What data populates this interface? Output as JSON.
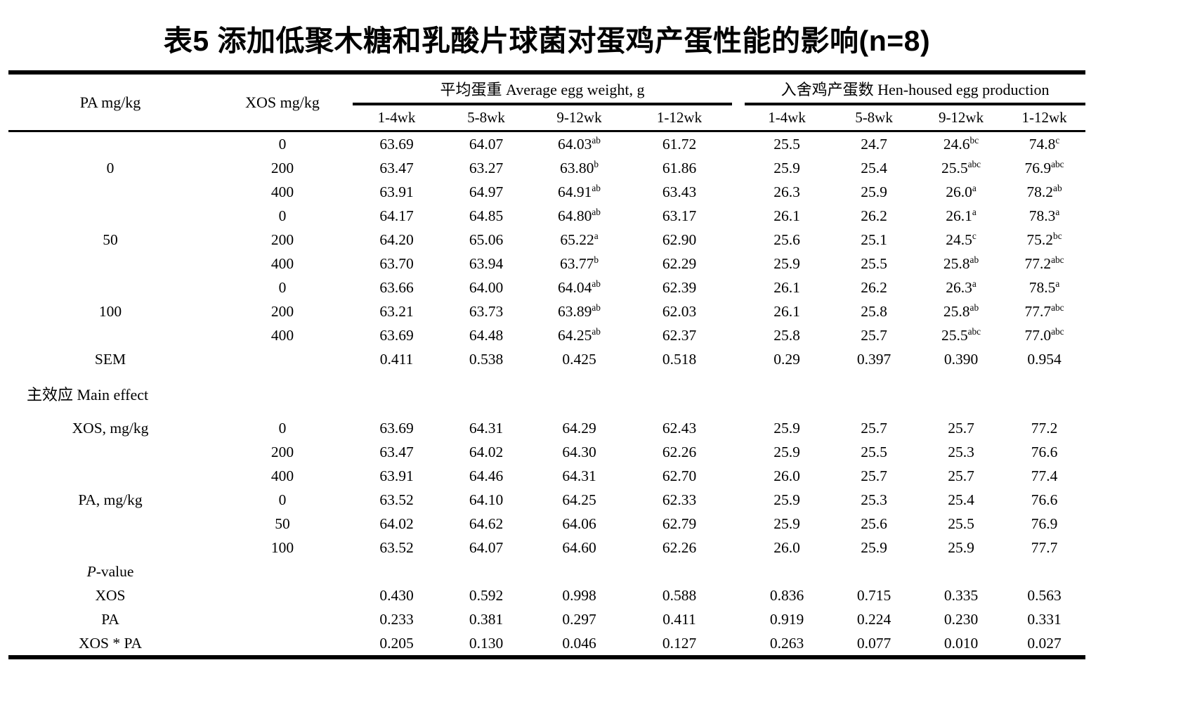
{
  "title": "表5 添加低聚木糖和乳酸片球菌对蛋鸡产蛋性能的影响(n=8)",
  "table": {
    "col_headers": {
      "pa": "PA mg/kg",
      "xos": "XOS mg/kg",
      "group1": "平均蛋重 Average egg weight, g",
      "group2": "入舍鸡产蛋数 Hen-housed egg production",
      "subcols": [
        "1-4wk",
        "5-8wk",
        "9-12wk",
        "1-12wk",
        "1-4wk",
        "5-8wk",
        "9-12wk",
        "1-12wk"
      ]
    },
    "rows": [
      {
        "c0": "",
        "c1": "0",
        "cells": [
          "63.69",
          "64.07",
          "64.03^ab",
          "61.72",
          "25.5",
          "24.7",
          "24.6^bc",
          "74.8^c"
        ]
      },
      {
        "c0": "0",
        "c1": "200",
        "cells": [
          "63.47",
          "63.27",
          "63.80^b",
          "61.86",
          "25.9",
          "25.4",
          "25.5^abc",
          "76.9^abc"
        ]
      },
      {
        "c0": "",
        "c1": "400",
        "cells": [
          "63.91",
          "64.97",
          "64.91^ab",
          "63.43",
          "26.3",
          "25.9",
          "26.0^a",
          "78.2^ab"
        ]
      },
      {
        "c0": "",
        "c1": "0",
        "cells": [
          "64.17",
          "64.85",
          "64.80^ab",
          "63.17",
          "26.1",
          "26.2",
          "26.1^a",
          "78.3^a"
        ]
      },
      {
        "c0": "50",
        "c1": "200",
        "cells": [
          "64.20",
          "65.06",
          "65.22^a",
          "62.90",
          "25.6",
          "25.1",
          "24.5^c",
          "75.2^bc"
        ]
      },
      {
        "c0": "",
        "c1": "400",
        "cells": [
          "63.70",
          "63.94",
          "63.77^b",
          "62.29",
          "25.9",
          "25.5",
          "25.8^ab",
          "77.2^abc"
        ]
      },
      {
        "c0": "",
        "c1": "0",
        "cells": [
          "63.66",
          "64.00",
          "64.04^ab",
          "62.39",
          "26.1",
          "26.2",
          "26.3^a",
          "78.5^a"
        ]
      },
      {
        "c0": "100",
        "c1": "200",
        "cells": [
          "63.21",
          "63.73",
          "63.89^ab",
          "62.03",
          "26.1",
          "25.8",
          "25.8^ab",
          "77.7^abc"
        ]
      },
      {
        "c0": "",
        "c1": "400",
        "cells": [
          "63.69",
          "64.48",
          "64.25^ab",
          "62.37",
          "25.8",
          "25.7",
          "25.5^abc",
          "77.0^abc"
        ]
      },
      {
        "c0": "SEM",
        "c1": "",
        "cells": [
          "0.411",
          "0.538",
          "0.425",
          "0.518",
          "0.29",
          "0.397",
          "0.390",
          "0.954"
        ]
      },
      {
        "type": "section",
        "label": "主效应 Main effect"
      },
      {
        "c0": "XOS, mg/kg",
        "c1": "0",
        "cells": [
          "63.69",
          "64.31",
          "64.29",
          "62.43",
          "25.9",
          "25.7",
          "25.7",
          "77.2"
        ]
      },
      {
        "c0": "",
        "c1": "200",
        "cells": [
          "63.47",
          "64.02",
          "64.30",
          "62.26",
          "25.9",
          "25.5",
          "25.3",
          "76.6"
        ]
      },
      {
        "c0": "",
        "c1": "400",
        "cells": [
          "63.91",
          "64.46",
          "64.31",
          "62.70",
          "26.0",
          "25.7",
          "25.7",
          "77.4"
        ]
      },
      {
        "c0": "PA, mg/kg",
        "c1": "0",
        "cells": [
          "63.52",
          "64.10",
          "64.25",
          "62.33",
          "25.9",
          "25.3",
          "25.4",
          "76.6"
        ]
      },
      {
        "c0": "",
        "c1": "50",
        "cells": [
          "64.02",
          "64.62",
          "64.06",
          "62.79",
          "25.9",
          "25.6",
          "25.5",
          "76.9"
        ]
      },
      {
        "c0": "",
        "c1": "100",
        "cells": [
          "63.52",
          "64.07",
          "64.60",
          "62.26",
          "26.0",
          "25.9",
          "25.9",
          "77.7"
        ]
      },
      {
        "c0": "P-value",
        "italic_p": true,
        "c1": "",
        "cells": [
          "",
          "",
          "",
          "",
          "",
          "",
          "",
          ""
        ]
      },
      {
        "c0": "XOS",
        "c1": "",
        "cells": [
          "0.430",
          "0.592",
          "0.998",
          "0.588",
          "0.836",
          "0.715",
          "0.335",
          "0.563"
        ]
      },
      {
        "c0": "PA",
        "c1": "",
        "cells": [
          "0.233",
          "0.381",
          "0.297",
          "0.411",
          "0.919",
          "0.224",
          "0.230",
          "0.331"
        ]
      },
      {
        "c0": "XOS * PA",
        "c1": "",
        "cells": [
          "0.205",
          "0.130",
          "0.046",
          "0.127",
          "0.263",
          "0.077",
          "0.010",
          "0.027"
        ]
      }
    ]
  }
}
